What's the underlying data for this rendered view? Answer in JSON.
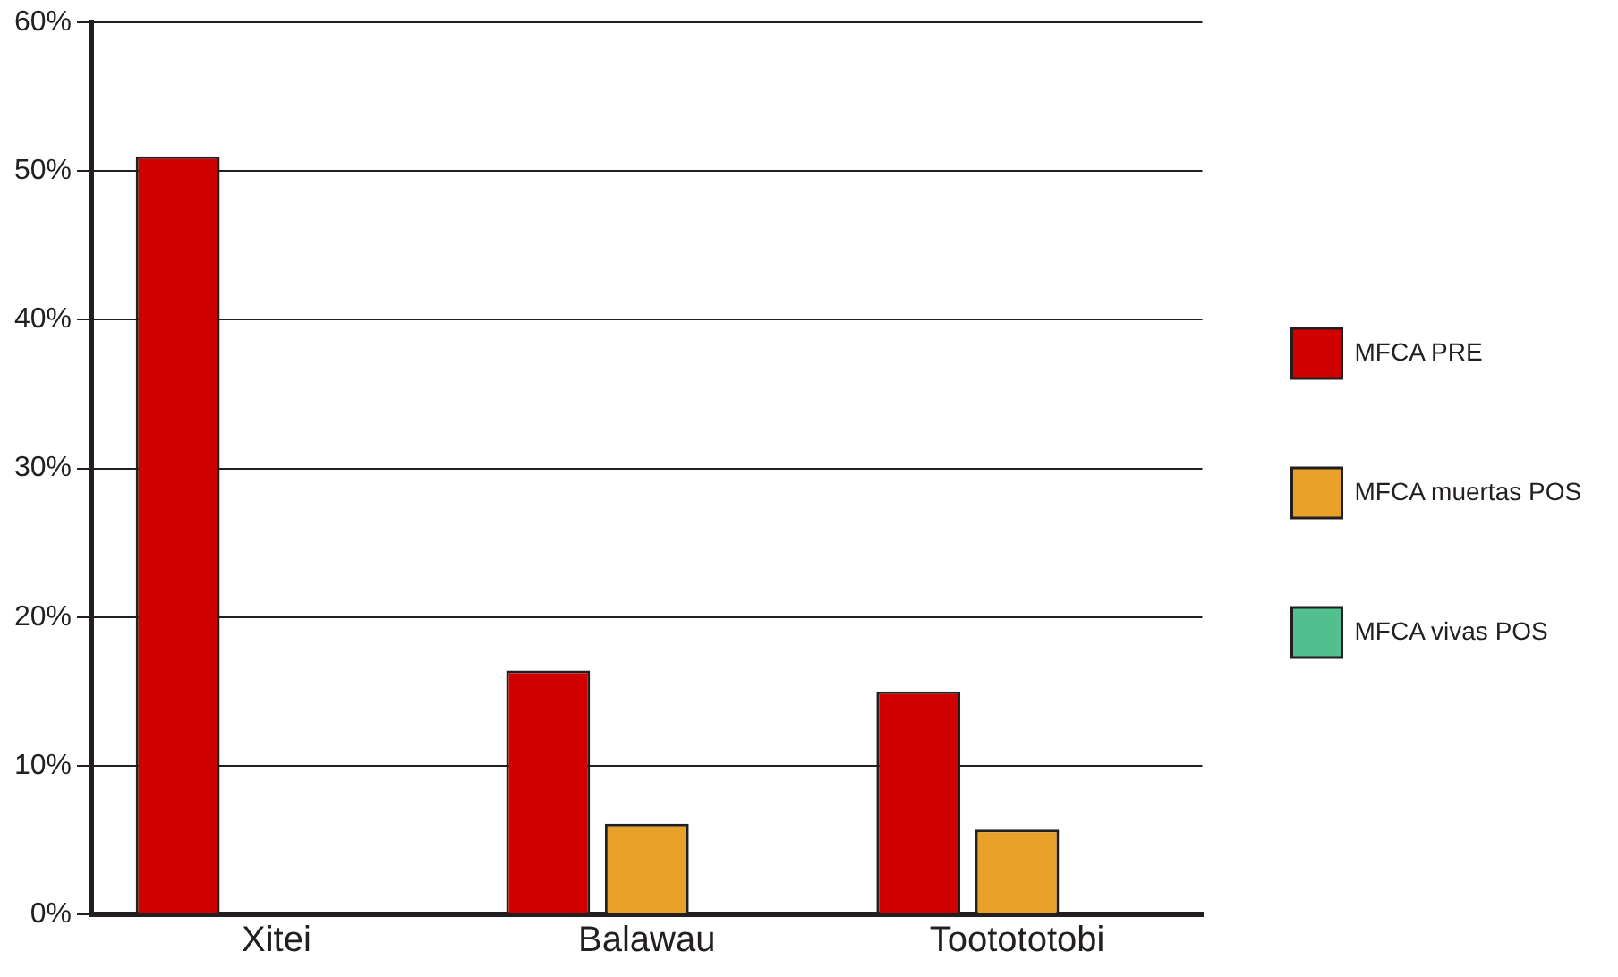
{
  "chart_data": {
    "type": "bar",
    "categories": [
      "Xitei",
      "Balawau",
      "Tootototobi"
    ],
    "series": [
      {
        "name": "MFCA PRE",
        "color": "#d10000",
        "values": [
          51,
          16.4,
          15
        ]
      },
      {
        "name": "MFCA muertas POS",
        "color": "#e8a22a",
        "values": [
          0,
          6.1,
          5.7
        ]
      },
      {
        "name": "MFCA vivas POS",
        "color": "#52c08e",
        "values": [
          0,
          0,
          0
        ]
      }
    ],
    "ylim": [
      0,
      60
    ],
    "yticks": [
      {
        "value": 0,
        "label": "0%"
      },
      {
        "value": 10,
        "label": "10%"
      },
      {
        "value": 20,
        "label": "20%"
      },
      {
        "value": 30,
        "label": "30%"
      },
      {
        "value": 40,
        "label": "40%"
      },
      {
        "value": 50,
        "label": "50%"
      },
      {
        "value": 60,
        "label": "60%"
      }
    ],
    "grid": "y",
    "legend": "right"
  }
}
